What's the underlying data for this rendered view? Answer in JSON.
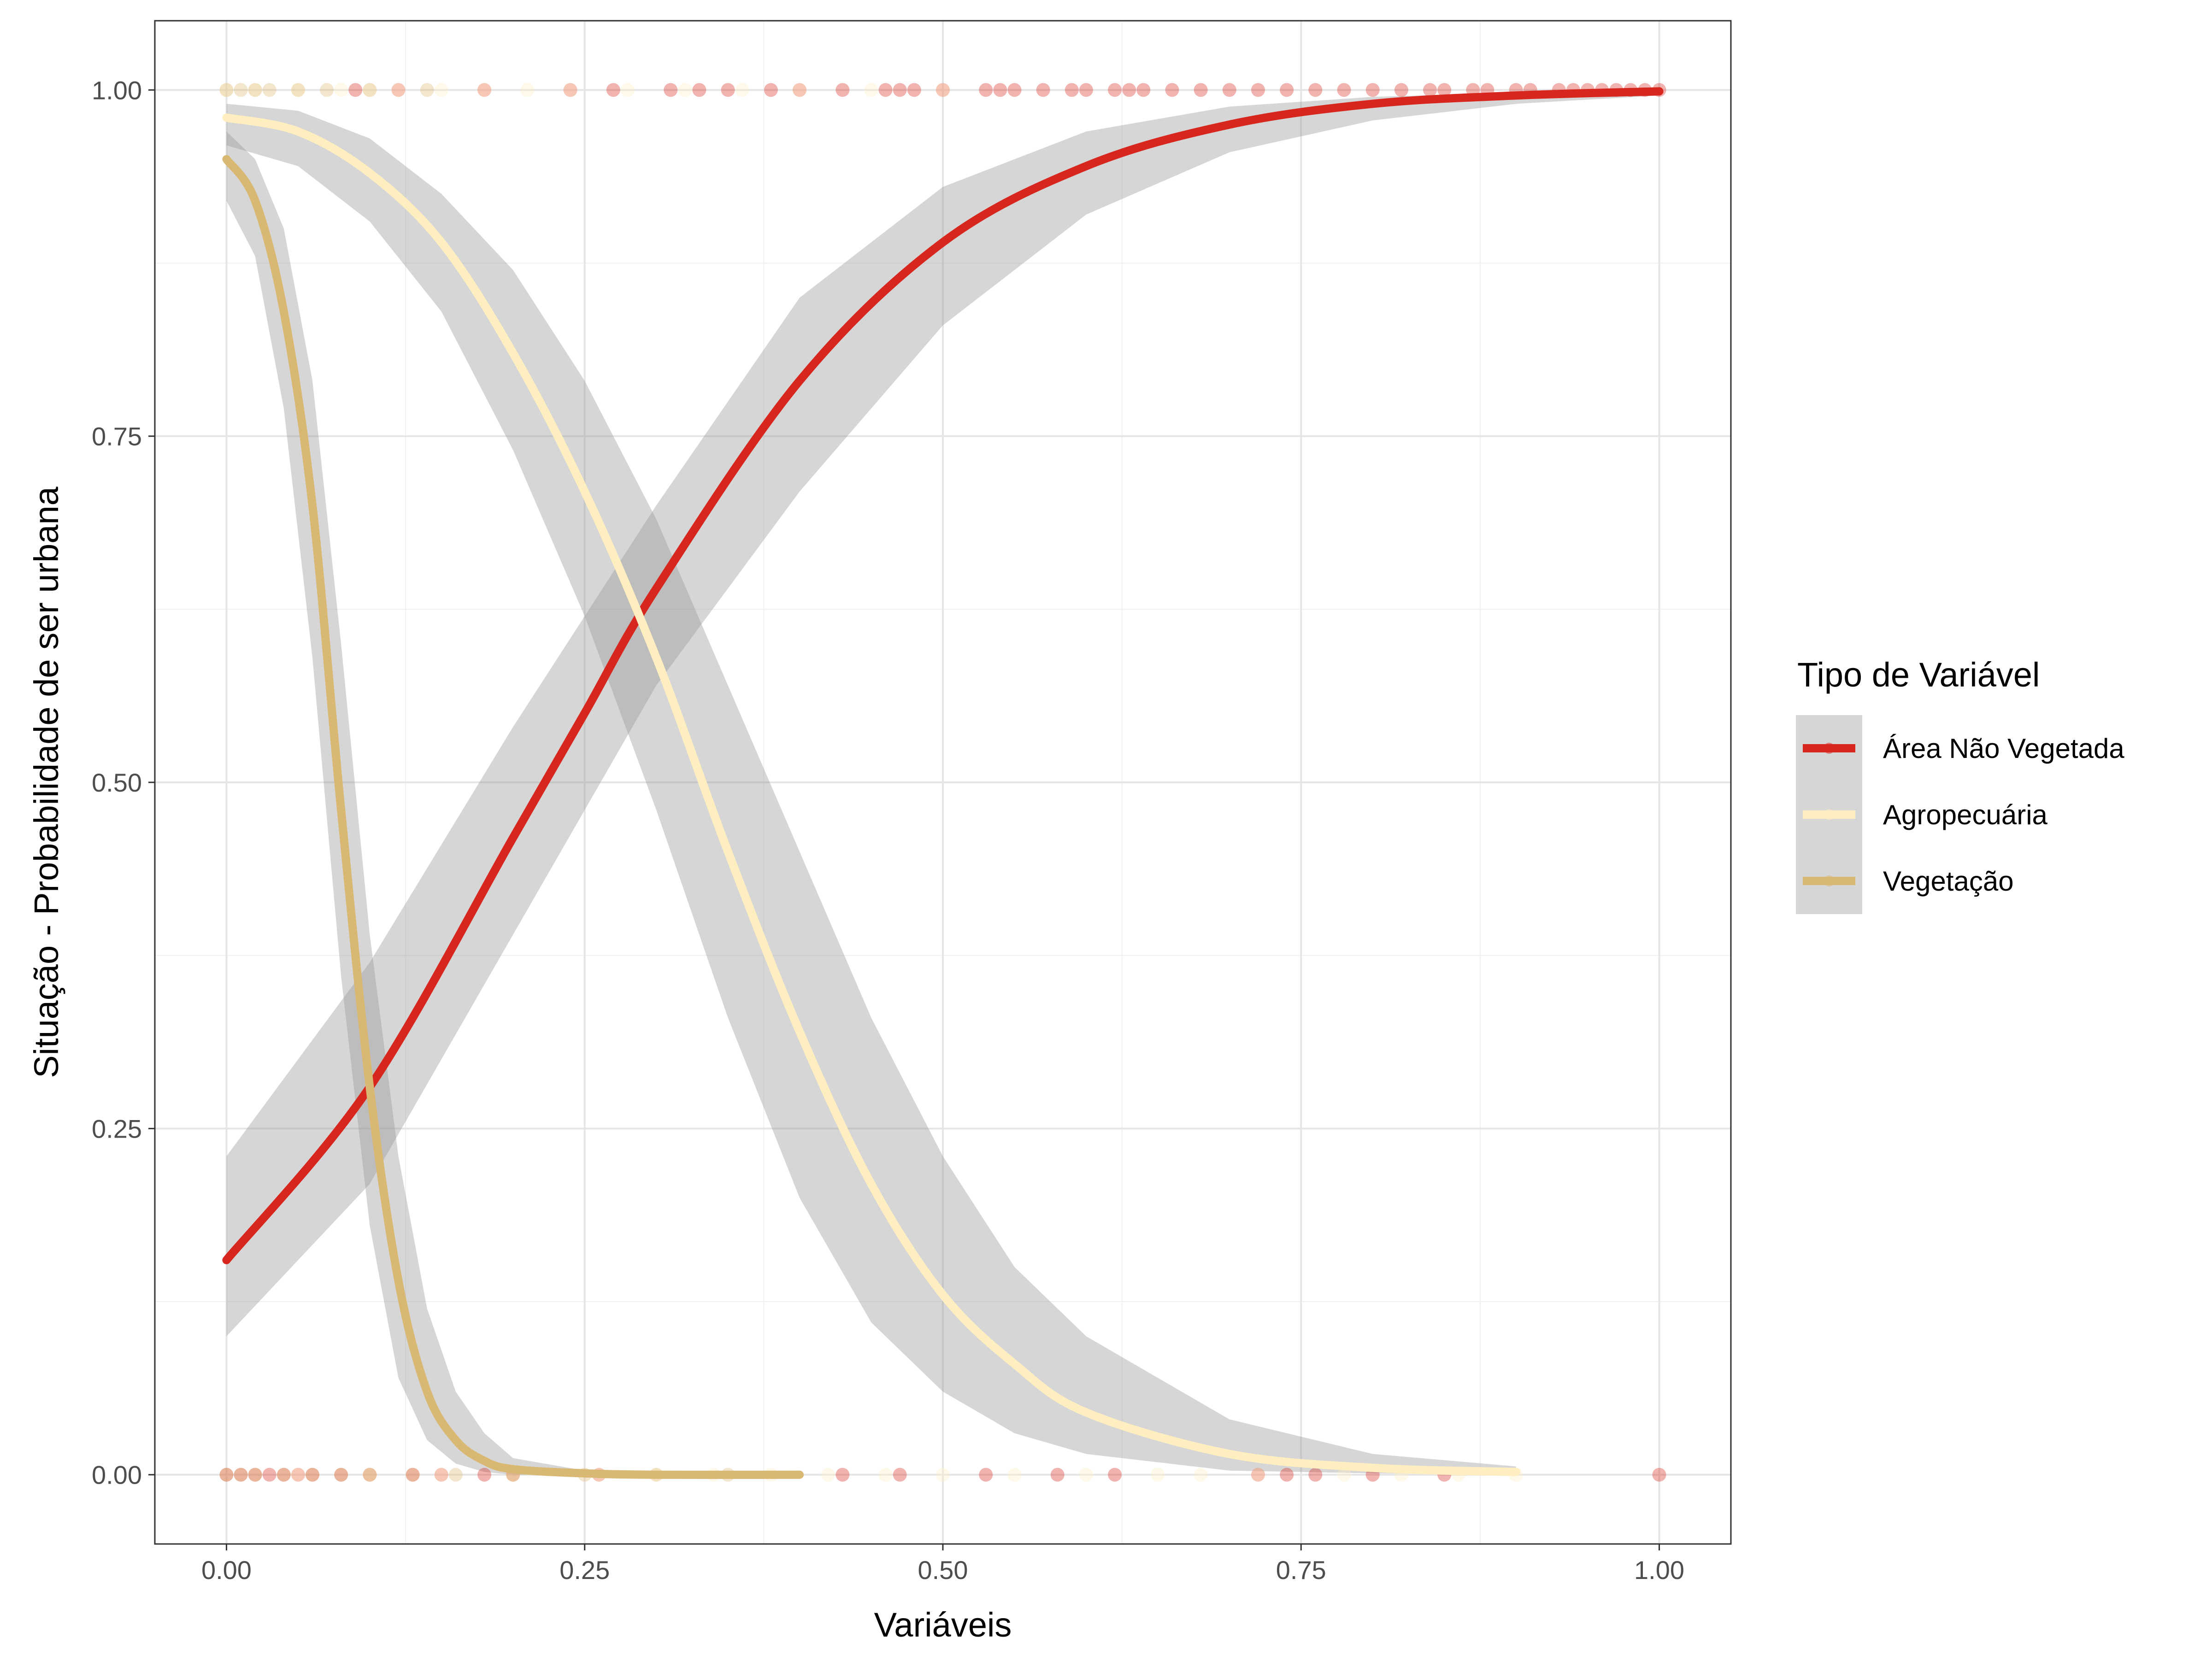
{
  "chart_data": {
    "type": "line",
    "xlabel": "Variáveis",
    "ylabel": "Situação - Probabilidade de ser urbana",
    "xlim": [
      -0.05,
      1.05
    ],
    "ylim": [
      -0.05,
      1.05
    ],
    "x_ticks": [
      {
        "value": 0,
        "label": "0.00"
      },
      {
        "value": 0.25,
        "label": "0.25"
      },
      {
        "value": 0.5,
        "label": "0.50"
      },
      {
        "value": 0.75,
        "label": "0.75"
      },
      {
        "value": 1,
        "label": "1.00"
      }
    ],
    "y_ticks": [
      {
        "value": 0,
        "label": "0.00"
      },
      {
        "value": 0.25,
        "label": "0.25"
      },
      {
        "value": 0.5,
        "label": "0.50"
      },
      {
        "value": 0.75,
        "label": "0.75"
      },
      {
        "value": 1,
        "label": "1.00"
      }
    ],
    "grid": true,
    "legend": {
      "title": "Tipo de Variável",
      "placement": "right"
    },
    "series": [
      {
        "name": "Área Não Vegetada",
        "color": "#D7261E",
        "x_range": [
          0,
          1
        ],
        "curve": [
          [
            0,
            0.155
          ],
          [
            0.1,
            0.28
          ],
          [
            0.2,
            0.46
          ],
          [
            0.25,
            0.55
          ],
          [
            0.3,
            0.64
          ],
          [
            0.4,
            0.79
          ],
          [
            0.5,
            0.89
          ],
          [
            0.6,
            0.945
          ],
          [
            0.7,
            0.975
          ],
          [
            0.8,
            0.99
          ],
          [
            0.9,
            0.996
          ],
          [
            1.0,
            0.999
          ]
        ],
        "ci_lower": [
          [
            0,
            0.1
          ],
          [
            0.1,
            0.21
          ],
          [
            0.2,
            0.39
          ],
          [
            0.25,
            0.48
          ],
          [
            0.3,
            0.57
          ],
          [
            0.4,
            0.71
          ],
          [
            0.5,
            0.83
          ],
          [
            0.6,
            0.91
          ],
          [
            0.7,
            0.955
          ],
          [
            0.8,
            0.978
          ],
          [
            0.9,
            0.99
          ],
          [
            1.0,
            0.996
          ]
        ],
        "ci_upper": [
          [
            0,
            0.23
          ],
          [
            0.1,
            0.37
          ],
          [
            0.2,
            0.54
          ],
          [
            0.25,
            0.62
          ],
          [
            0.3,
            0.7
          ],
          [
            0.4,
            0.85
          ],
          [
            0.5,
            0.93
          ],
          [
            0.6,
            0.97
          ],
          [
            0.7,
            0.988
          ],
          [
            0.8,
            0.995
          ],
          [
            0.9,
            0.998
          ],
          [
            1.0,
            1.0
          ]
        ],
        "points_y1": [
          0.09,
          0.12,
          0.18,
          0.24,
          0.27,
          0.31,
          0.33,
          0.35,
          0.38,
          0.4,
          0.43,
          0.46,
          0.47,
          0.48,
          0.5,
          0.53,
          0.54,
          0.55,
          0.57,
          0.59,
          0.6,
          0.62,
          0.63,
          0.64,
          0.66,
          0.68,
          0.7,
          0.72,
          0.74,
          0.76,
          0.78,
          0.8,
          0.82,
          0.84,
          0.85,
          0.87,
          0.88,
          0.9,
          0.91,
          0.93,
          0.94,
          0.95,
          0.96,
          0.97,
          0.98,
          0.99,
          1.0
        ],
        "points_y0": [
          0.0,
          0.01,
          0.02,
          0.03,
          0.04,
          0.05,
          0.06,
          0.08,
          0.1,
          0.13,
          0.15,
          0.18,
          0.2,
          0.26,
          0.43,
          0.47,
          0.53,
          0.58,
          0.62,
          0.72,
          0.74,
          0.76,
          0.8,
          0.85,
          1.0
        ]
      },
      {
        "name": "Agropecuária",
        "color": "#FFEFC0",
        "x_range": [
          0,
          0.9
        ],
        "curve": [
          [
            0,
            0.98
          ],
          [
            0.05,
            0.97
          ],
          [
            0.1,
            0.94
          ],
          [
            0.15,
            0.89
          ],
          [
            0.2,
            0.81
          ],
          [
            0.25,
            0.71
          ],
          [
            0.3,
            0.59
          ],
          [
            0.35,
            0.45
          ],
          [
            0.4,
            0.32
          ],
          [
            0.45,
            0.21
          ],
          [
            0.5,
            0.13
          ],
          [
            0.55,
            0.08
          ],
          [
            0.6,
            0.045
          ],
          [
            0.7,
            0.015
          ],
          [
            0.8,
            0.005
          ],
          [
            0.9,
            0.002
          ]
        ],
        "ci_lower": [
          [
            0,
            0.96
          ],
          [
            0.05,
            0.945
          ],
          [
            0.1,
            0.905
          ],
          [
            0.15,
            0.84
          ],
          [
            0.2,
            0.74
          ],
          [
            0.25,
            0.62
          ],
          [
            0.3,
            0.48
          ],
          [
            0.35,
            0.33
          ],
          [
            0.4,
            0.2
          ],
          [
            0.45,
            0.11
          ],
          [
            0.5,
            0.06
          ],
          [
            0.55,
            0.03
          ],
          [
            0.6,
            0.015
          ],
          [
            0.7,
            0.003
          ],
          [
            0.8,
            0.001
          ],
          [
            0.9,
            0.0
          ]
        ],
        "ci_upper": [
          [
            0,
            0.99
          ],
          [
            0.05,
            0.985
          ],
          [
            0.1,
            0.965
          ],
          [
            0.15,
            0.925
          ],
          [
            0.2,
            0.87
          ],
          [
            0.25,
            0.79
          ],
          [
            0.3,
            0.69
          ],
          [
            0.35,
            0.57
          ],
          [
            0.4,
            0.45
          ],
          [
            0.45,
            0.33
          ],
          [
            0.5,
            0.23
          ],
          [
            0.55,
            0.15
          ],
          [
            0.6,
            0.1
          ],
          [
            0.7,
            0.04
          ],
          [
            0.8,
            0.015
          ],
          [
            0.9,
            0.006
          ]
        ],
        "points_y1": [
          0.0,
          0.02,
          0.05,
          0.08,
          0.1,
          0.12,
          0.15,
          0.18,
          0.21,
          0.24,
          0.28,
          0.32,
          0.36,
          0.4,
          0.45,
          0.5
        ],
        "points_y0": [
          0.05,
          0.1,
          0.15,
          0.2,
          0.26,
          0.3,
          0.34,
          0.38,
          0.42,
          0.46,
          0.5,
          0.55,
          0.6,
          0.65,
          0.68,
          0.72,
          0.78,
          0.82,
          0.86,
          0.9
        ]
      },
      {
        "name": "Vegetação",
        "color": "#D9B874",
        "x_range": [
          0,
          0.4
        ],
        "curve": [
          [
            0,
            0.95
          ],
          [
            0.02,
            0.92
          ],
          [
            0.04,
            0.84
          ],
          [
            0.06,
            0.7
          ],
          [
            0.08,
            0.48
          ],
          [
            0.1,
            0.28
          ],
          [
            0.12,
            0.14
          ],
          [
            0.14,
            0.06
          ],
          [
            0.16,
            0.025
          ],
          [
            0.18,
            0.01
          ],
          [
            0.2,
            0.004
          ],
          [
            0.25,
            0.001
          ],
          [
            0.3,
            0.0
          ],
          [
            0.4,
            0.0
          ]
        ],
        "ci_lower": [
          [
            0,
            0.92
          ],
          [
            0.02,
            0.88
          ],
          [
            0.04,
            0.77
          ],
          [
            0.06,
            0.59
          ],
          [
            0.08,
            0.36
          ],
          [
            0.1,
            0.18
          ],
          [
            0.12,
            0.07
          ],
          [
            0.14,
            0.025
          ],
          [
            0.16,
            0.008
          ],
          [
            0.18,
            0.002
          ],
          [
            0.2,
            0.0
          ],
          [
            0.25,
            0.0
          ],
          [
            0.3,
            0.0
          ],
          [
            0.4,
            0.0
          ]
        ],
        "ci_upper": [
          [
            0,
            0.97
          ],
          [
            0.02,
            0.95
          ],
          [
            0.04,
            0.9
          ],
          [
            0.06,
            0.79
          ],
          [
            0.08,
            0.6
          ],
          [
            0.1,
            0.39
          ],
          [
            0.12,
            0.23
          ],
          [
            0.14,
            0.12
          ],
          [
            0.16,
            0.06
          ],
          [
            0.18,
            0.03
          ],
          [
            0.2,
            0.012
          ],
          [
            0.25,
            0.003
          ],
          [
            0.3,
            0.001
          ],
          [
            0.4,
            0.0
          ]
        ],
        "points_y1": [
          0.0,
          0.01,
          0.02,
          0.03,
          0.05,
          0.07,
          0.1,
          0.14
        ],
        "points_y0": [
          0.0,
          0.01,
          0.02,
          0.04,
          0.06,
          0.08,
          0.1,
          0.13,
          0.16,
          0.2,
          0.25,
          0.3,
          0.35
        ]
      }
    ]
  }
}
